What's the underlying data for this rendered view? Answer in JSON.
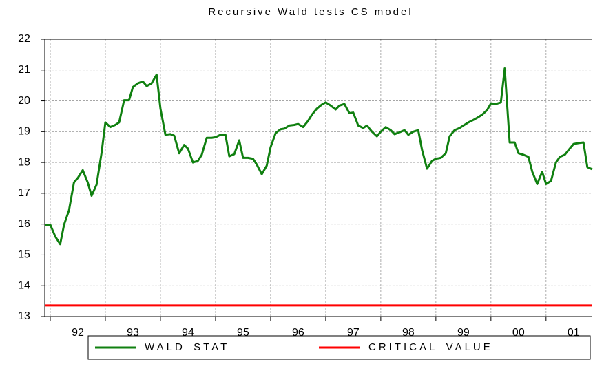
{
  "chart_data": {
    "type": "line",
    "title": "Recursive Wald tests CS model",
    "x": [
      1991.9,
      1992,
      1992.09,
      1992.18,
      1992.25,
      1992.34,
      1992.43,
      1992.5,
      1992.59,
      1992.68,
      1992.75,
      1992.84,
      1992.93,
      1993,
      1993.09,
      1993.18,
      1993.25,
      1993.34,
      1993.43,
      1993.5,
      1993.59,
      1993.68,
      1993.75,
      1993.84,
      1993.93,
      1994,
      1994.09,
      1994.18,
      1994.25,
      1994.34,
      1994.43,
      1994.5,
      1994.59,
      1994.68,
      1994.75,
      1994.84,
      1994.93,
      1995,
      1995.09,
      1995.18,
      1995.25,
      1995.34,
      1995.43,
      1995.5,
      1995.59,
      1995.68,
      1995.75,
      1995.84,
      1995.93,
      1996,
      1996.09,
      1996.18,
      1996.25,
      1996.34,
      1996.43,
      1996.5,
      1996.59,
      1996.68,
      1996.75,
      1996.84,
      1996.93,
      1997,
      1997.09,
      1997.18,
      1997.25,
      1997.34,
      1997.43,
      1997.5,
      1997.59,
      1997.68,
      1997.75,
      1997.84,
      1997.93,
      1998,
      1998.09,
      1998.18,
      1998.25,
      1998.34,
      1998.43,
      1998.5,
      1998.59,
      1998.68,
      1998.75,
      1998.84,
      1998.93,
      1999,
      1999.09,
      1999.18,
      1999.25,
      1999.34,
      1999.43,
      1999.5,
      1999.59,
      1999.68,
      1999.75,
      1999.84,
      1999.93,
      2000,
      2000.09,
      2000.18,
      2000.25,
      2000.34,
      2000.43,
      2000.5,
      2000.59,
      2000.68,
      2000.75,
      2000.84,
      2000.93,
      2001,
      2001.09,
      2001.18,
      2001.25,
      2001.34,
      2001.43,
      2001.5,
      2001.59,
      2001.68,
      2001.75,
      2001.84
    ],
    "series": [
      {
        "name": "WALD_STAT",
        "color": "#108010",
        "values": [
          15.98,
          15.98,
          15.6,
          15.35,
          15.98,
          16.45,
          17.35,
          17.5,
          17.75,
          17.35,
          16.92,
          17.28,
          18.3,
          19.3,
          19.15,
          19.22,
          19.3,
          20.02,
          20.02,
          20.45,
          20.57,
          20.63,
          20.48,
          20.57,
          20.85,
          19.75,
          18.9,
          18.92,
          18.87,
          18.3,
          18.57,
          18.45,
          18.0,
          18.05,
          18.25,
          18.8,
          18.8,
          18.82,
          18.9,
          18.9,
          18.2,
          18.27,
          18.72,
          18.15,
          18.15,
          18.12,
          17.93,
          17.62,
          17.9,
          18.5,
          18.95,
          19.08,
          19.1,
          19.2,
          19.22,
          19.25,
          19.15,
          19.35,
          19.55,
          19.75,
          19.88,
          19.95,
          19.85,
          19.72,
          19.85,
          19.9,
          19.6,
          19.62,
          19.2,
          19.12,
          19.2,
          19.0,
          18.85,
          19.0,
          19.15,
          19.05,
          18.92,
          18.98,
          19.05,
          18.9,
          19.0,
          19.05,
          18.4,
          17.8,
          18.05,
          18.12,
          18.15,
          18.3,
          18.85,
          19.05,
          19.12,
          19.2,
          19.3,
          19.38,
          19.45,
          19.55,
          19.7,
          19.92,
          19.9,
          19.95,
          21.05,
          18.65,
          18.65,
          18.3,
          18.25,
          18.18,
          17.7,
          17.3,
          17.7,
          17.3,
          17.4,
          18.0,
          18.18,
          18.25,
          18.45,
          18.6,
          18.63,
          18.65,
          17.85,
          17.78
        ]
      },
      {
        "name": "CRITICAL_VALUE",
        "color": "#ff0000",
        "x": [
          1991.9,
          2001.84
        ],
        "values": [
          13.36,
          13.36
        ]
      }
    ],
    "xlim": [
      1991.9,
      2001.84
    ],
    "xticks": [
      {
        "value": 1992,
        "label": "92"
      },
      {
        "value": 1993,
        "label": "93"
      },
      {
        "value": 1994,
        "label": "94"
      },
      {
        "value": 1995,
        "label": "95"
      },
      {
        "value": 1996,
        "label": "96"
      },
      {
        "value": 1997,
        "label": "97"
      },
      {
        "value": 1998,
        "label": "98"
      },
      {
        "value": 1999,
        "label": "99"
      },
      {
        "value": 2000,
        "label": "00"
      },
      {
        "value": 2001,
        "label": "01"
      }
    ],
    "ylim": [
      13,
      22
    ],
    "yticks": [
      13,
      14,
      15,
      16,
      17,
      18,
      19,
      20,
      21,
      22
    ],
    "grid": true,
    "legend": "bottom"
  }
}
